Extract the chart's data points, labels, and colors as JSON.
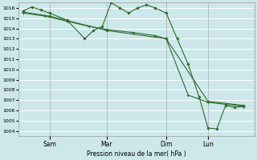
{
  "bg_color": "#cce8ea",
  "grid_color": "#ffffff",
  "line_color": "#2d6a2d",
  "marker_color": "#2d6a2d",
  "xlabel_text": "Pression niveau de la mer( hPa )",
  "ylim": [
    1003.5,
    1016.5
  ],
  "yticks": [
    1004,
    1005,
    1006,
    1007,
    1008,
    1009,
    1010,
    1011,
    1012,
    1013,
    1014,
    1015,
    1016
  ],
  "xtick_labels": [
    "Sam",
    "Mar",
    "Dim",
    "Lun"
  ],
  "xtick_positions": [
    0.12,
    0.38,
    0.65,
    0.84
  ],
  "day_lines": [
    0.12,
    0.38,
    0.65,
    0.84
  ],
  "series1_x": [
    0.0,
    0.04,
    0.08,
    0.12,
    0.2,
    0.28,
    0.32,
    0.36,
    0.4,
    0.44,
    0.48,
    0.52,
    0.56,
    0.6,
    0.65,
    0.7,
    0.75,
    0.8,
    0.84,
    0.88,
    0.92,
    0.96,
    1.0
  ],
  "series1_y": [
    1015.7,
    1016.1,
    1015.8,
    1015.5,
    1014.8,
    1013.0,
    1013.8,
    1014.2,
    1016.5,
    1016.0,
    1015.5,
    1016.0,
    1016.3,
    1016.0,
    1015.5,
    1013.0,
    1010.5,
    1007.3,
    1004.3,
    1004.2,
    1006.5,
    1006.3,
    1006.4
  ],
  "series2_x": [
    0.0,
    0.12,
    0.38,
    0.65,
    0.84,
    1.0
  ],
  "series2_y": [
    1015.6,
    1015.2,
    1013.8,
    1013.0,
    1006.9,
    1006.5
  ],
  "series3_x": [
    0.0,
    0.1,
    0.2,
    0.3,
    0.38,
    0.5,
    0.6,
    0.65,
    0.75,
    0.84,
    0.92,
    1.0
  ],
  "series3_y": [
    1015.5,
    1015.2,
    1014.7,
    1014.2,
    1013.9,
    1013.6,
    1013.3,
    1013.0,
    1007.5,
    1006.8,
    1006.6,
    1006.4
  ]
}
